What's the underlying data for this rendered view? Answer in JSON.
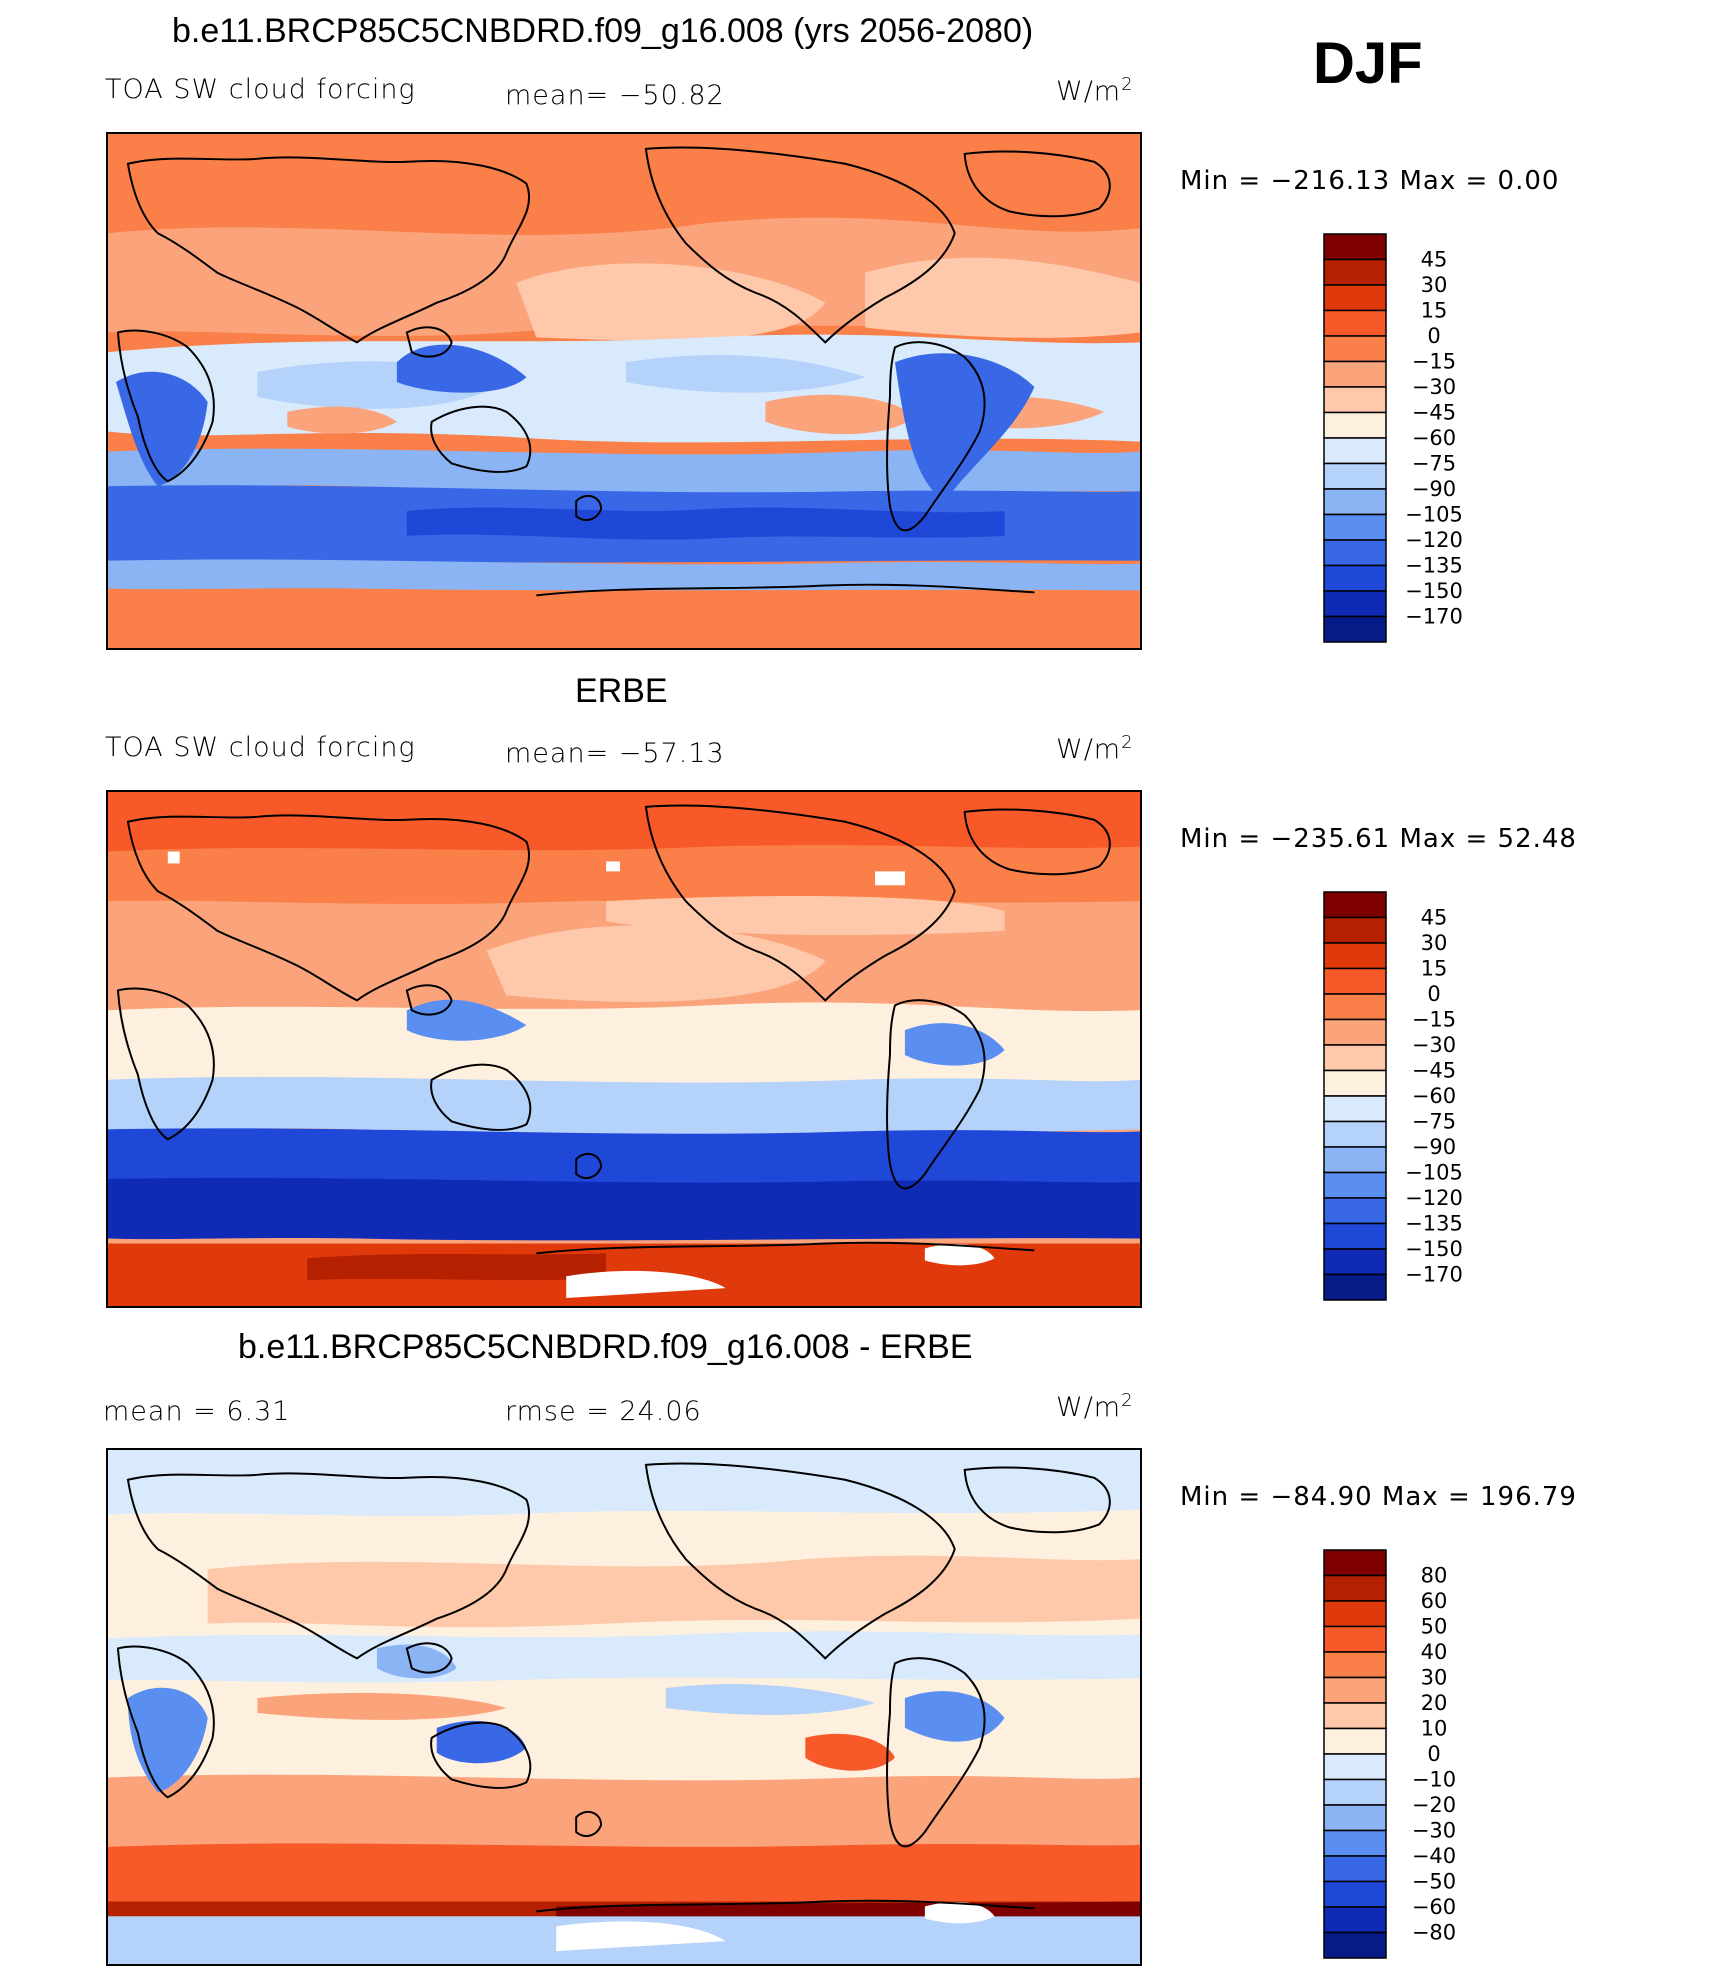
{
  "season": "DJF",
  "panels": [
    {
      "id": "model",
      "title": "b.e11.BRCP85C5CNBDRD.f09_g16.008 (yrs 2056-2080)",
      "left_label": "TOA SW cloud forcing",
      "center_label": "mean=  −50.82",
      "units_base": "W/m",
      "units_exp": "2",
      "minmax": "Min  =  −216.13  Max  =     0.00",
      "colorbar_labels": [
        "45",
        "30",
        "15",
        "0",
        "−15",
        "−30",
        "−45",
        "−60",
        "−75",
        "−90",
        "−105",
        "−120",
        "−135",
        "−150",
        "−170"
      ]
    },
    {
      "id": "obs",
      "title": "ERBE",
      "left_label": "TOA SW cloud forcing",
      "center_label": "mean=  −57.13",
      "units_base": "W/m",
      "units_exp": "2",
      "minmax": "Min  =  −235.61  Max  =   52.48",
      "colorbar_labels": [
        "45",
        "30",
        "15",
        "0",
        "−15",
        "−30",
        "−45",
        "−60",
        "−75",
        "−90",
        "−105",
        "−120",
        "−135",
        "−150",
        "−170"
      ]
    },
    {
      "id": "diff",
      "title": "b.e11.BRCP85C5CNBDRD.f09_g16.008 - ERBE",
      "left_label": "mean  =      6.31",
      "center_label": "rmse  =    24.06",
      "units_base": "W/m",
      "units_exp": "2",
      "minmax": "Min  =  −84.90  Max  =  196.79",
      "colorbar_labels": [
        "80",
        "60",
        "50",
        "40",
        "30",
        "20",
        "10",
        "0",
        "−10",
        "−20",
        "−30",
        "−40",
        "−50",
        "−60",
        "−80"
      ]
    }
  ],
  "colors": {
    "scale": [
      "#7e0000",
      "#b42000",
      "#e03a0c",
      "#f75a28",
      "#fa7f48",
      "#fba47c",
      "#fdc9aa",
      "#fef0de",
      "#d8eafc",
      "#b4d2fa",
      "#8bb4f5",
      "#5a8ef0",
      "#3868e6",
      "#1f48d8",
      "#0f2ab4",
      "#061b87"
    ]
  }
}
